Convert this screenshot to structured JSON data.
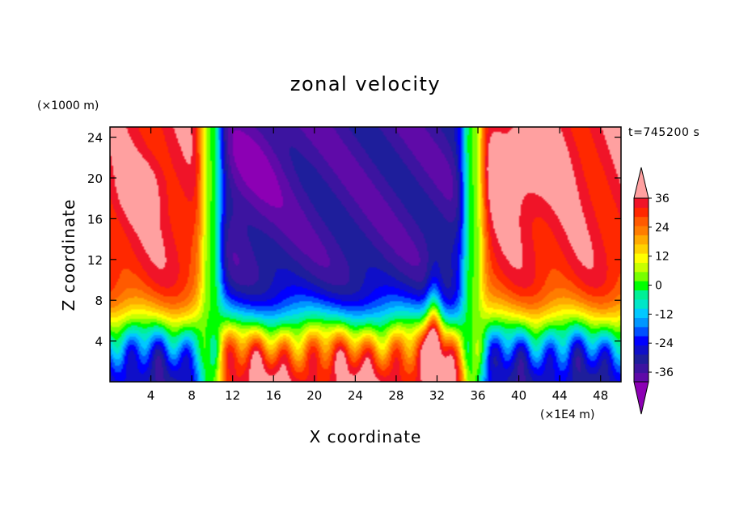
{
  "chart_data": {
    "type": "heatmap",
    "title": "zonal velocity",
    "xlabel": "X coordinate",
    "ylabel": "Z coordinate",
    "x_units": "(×1E4 m)",
    "y_units": "(×1000 m)",
    "time_label": "t=745200 s",
    "xlim": [
      0,
      50
    ],
    "ylim": [
      0,
      25
    ],
    "x_ticks": [
      4,
      8,
      12,
      16,
      20,
      24,
      28,
      32,
      36,
      40,
      44,
      48
    ],
    "x_tick_labels": [
      "4",
      "8",
      "12",
      "16",
      "20",
      "24",
      "28",
      "32",
      "36",
      "40",
      "44",
      "48"
    ],
    "y_ticks": [
      4,
      8,
      12,
      16,
      20,
      24
    ],
    "y_tick_labels": [
      "4",
      "8",
      "12",
      "16",
      "20",
      "24"
    ],
    "colorbar": {
      "levels": [
        -44,
        -40,
        -36,
        -32,
        -28,
        -24,
        -20,
        -16,
        -12,
        -8,
        -4,
        0,
        4,
        8,
        12,
        16,
        20,
        24,
        28,
        32,
        36,
        40
      ],
      "tick_values": [
        -36,
        -24,
        -12,
        0,
        12,
        24,
        36
      ],
      "tick_labels": [
        "-36",
        "-24",
        "-12",
        "0",
        "12",
        "24",
        "36"
      ],
      "colors": [
        "#8c00b4",
        "#5f0aa8",
        "#3c14a0",
        "#1e1e9b",
        "#0f0fc8",
        "#0000ff",
        "#0050ff",
        "#0096ff",
        "#00c8ff",
        "#00e6c8",
        "#00f096",
        "#00ff00",
        "#78ff00",
        "#c8ff00",
        "#ffff00",
        "#ffd200",
        "#ffaa00",
        "#ff7d00",
        "#ff5a00",
        "#ff2800",
        "#f01428",
        "#ffa0a0"
      ]
    },
    "field_description_values": {
      "jet_west_x": 9.9,
      "jet_east_x": 35.5,
      "upper_west_velocity": 40,
      "upper_middle_velocity": -42,
      "lower_west_velocity": -36,
      "near_surface_middle_velocity": 30
    }
  }
}
